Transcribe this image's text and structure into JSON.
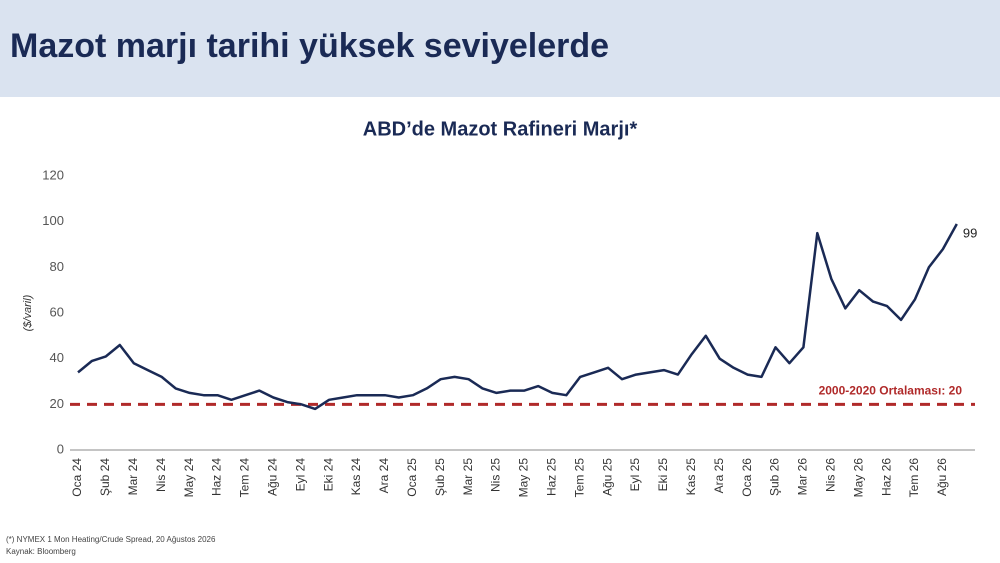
{
  "header": {
    "title": "Mazot marjı tarihi yüksek seviyelerde"
  },
  "chart_data": {
    "type": "line",
    "title": "ABD’de Mazot Rafineri Marjı*",
    "y_label": "($/varil)",
    "categories": [
      "Oca 24",
      null,
      "Şub 24",
      null,
      "Mar 24",
      null,
      "Nis 24",
      null,
      "May 24",
      null,
      "Haz 24",
      null,
      "Tem 24",
      null,
      "Ağu 24",
      null,
      "Eyl 24",
      null,
      "Eki 24",
      null,
      "Kas 24",
      null,
      "Ara 24",
      null,
      "Oca 25",
      null,
      "Şub 25",
      null,
      "Mar 25",
      null,
      "Nis 25",
      null,
      "May 25",
      null,
      "Haz 25",
      null,
      "Tem 25",
      null,
      "Ağu 25",
      null,
      "Eyl 25",
      null,
      "Eki 25",
      null,
      "Kas 25",
      null,
      "Ara 25",
      null,
      "Oca 26",
      null,
      "Şub 26",
      null,
      "Mar 26",
      null,
      "Nis 26",
      null,
      "May 26",
      null,
      "Haz 26",
      null,
      "Tem 26",
      null,
      "Ağu 26",
      null
    ],
    "series": [
      {
        "color": "#1a2a55",
        "values": [
          34,
          39,
          41,
          46,
          38,
          35,
          32,
          27,
          25,
          24,
          24,
          22,
          24,
          26,
          23,
          21,
          20,
          18,
          22,
          23,
          24,
          24,
          24,
          23,
          24,
          27,
          31,
          32,
          31,
          27,
          25,
          26,
          26,
          28,
          25,
          24,
          32,
          34,
          36,
          31,
          33,
          34,
          35,
          33,
          42,
          50,
          40,
          36,
          33,
          32,
          45,
          38,
          45,
          95,
          75,
          62,
          70,
          65,
          63,
          57,
          66,
          80,
          88,
          99
        ]
      }
    ],
    "show_last_value": true,
    "reference": {
      "value": 20,
      "label": "2000-2020 Ortalaması:  20",
      "color": "#b02a2a"
    },
    "ylim": [
      0,
      120
    ],
    "yticks": [
      0,
      20,
      40,
      60,
      80,
      100,
      120
    ],
    "grid": false
  },
  "footer": {
    "notes": [
      "(*) NYMEX 1 Mon Heating/Crude Spread, 20 Ağustos 2026",
      "Kaynak: Bloomberg"
    ]
  }
}
